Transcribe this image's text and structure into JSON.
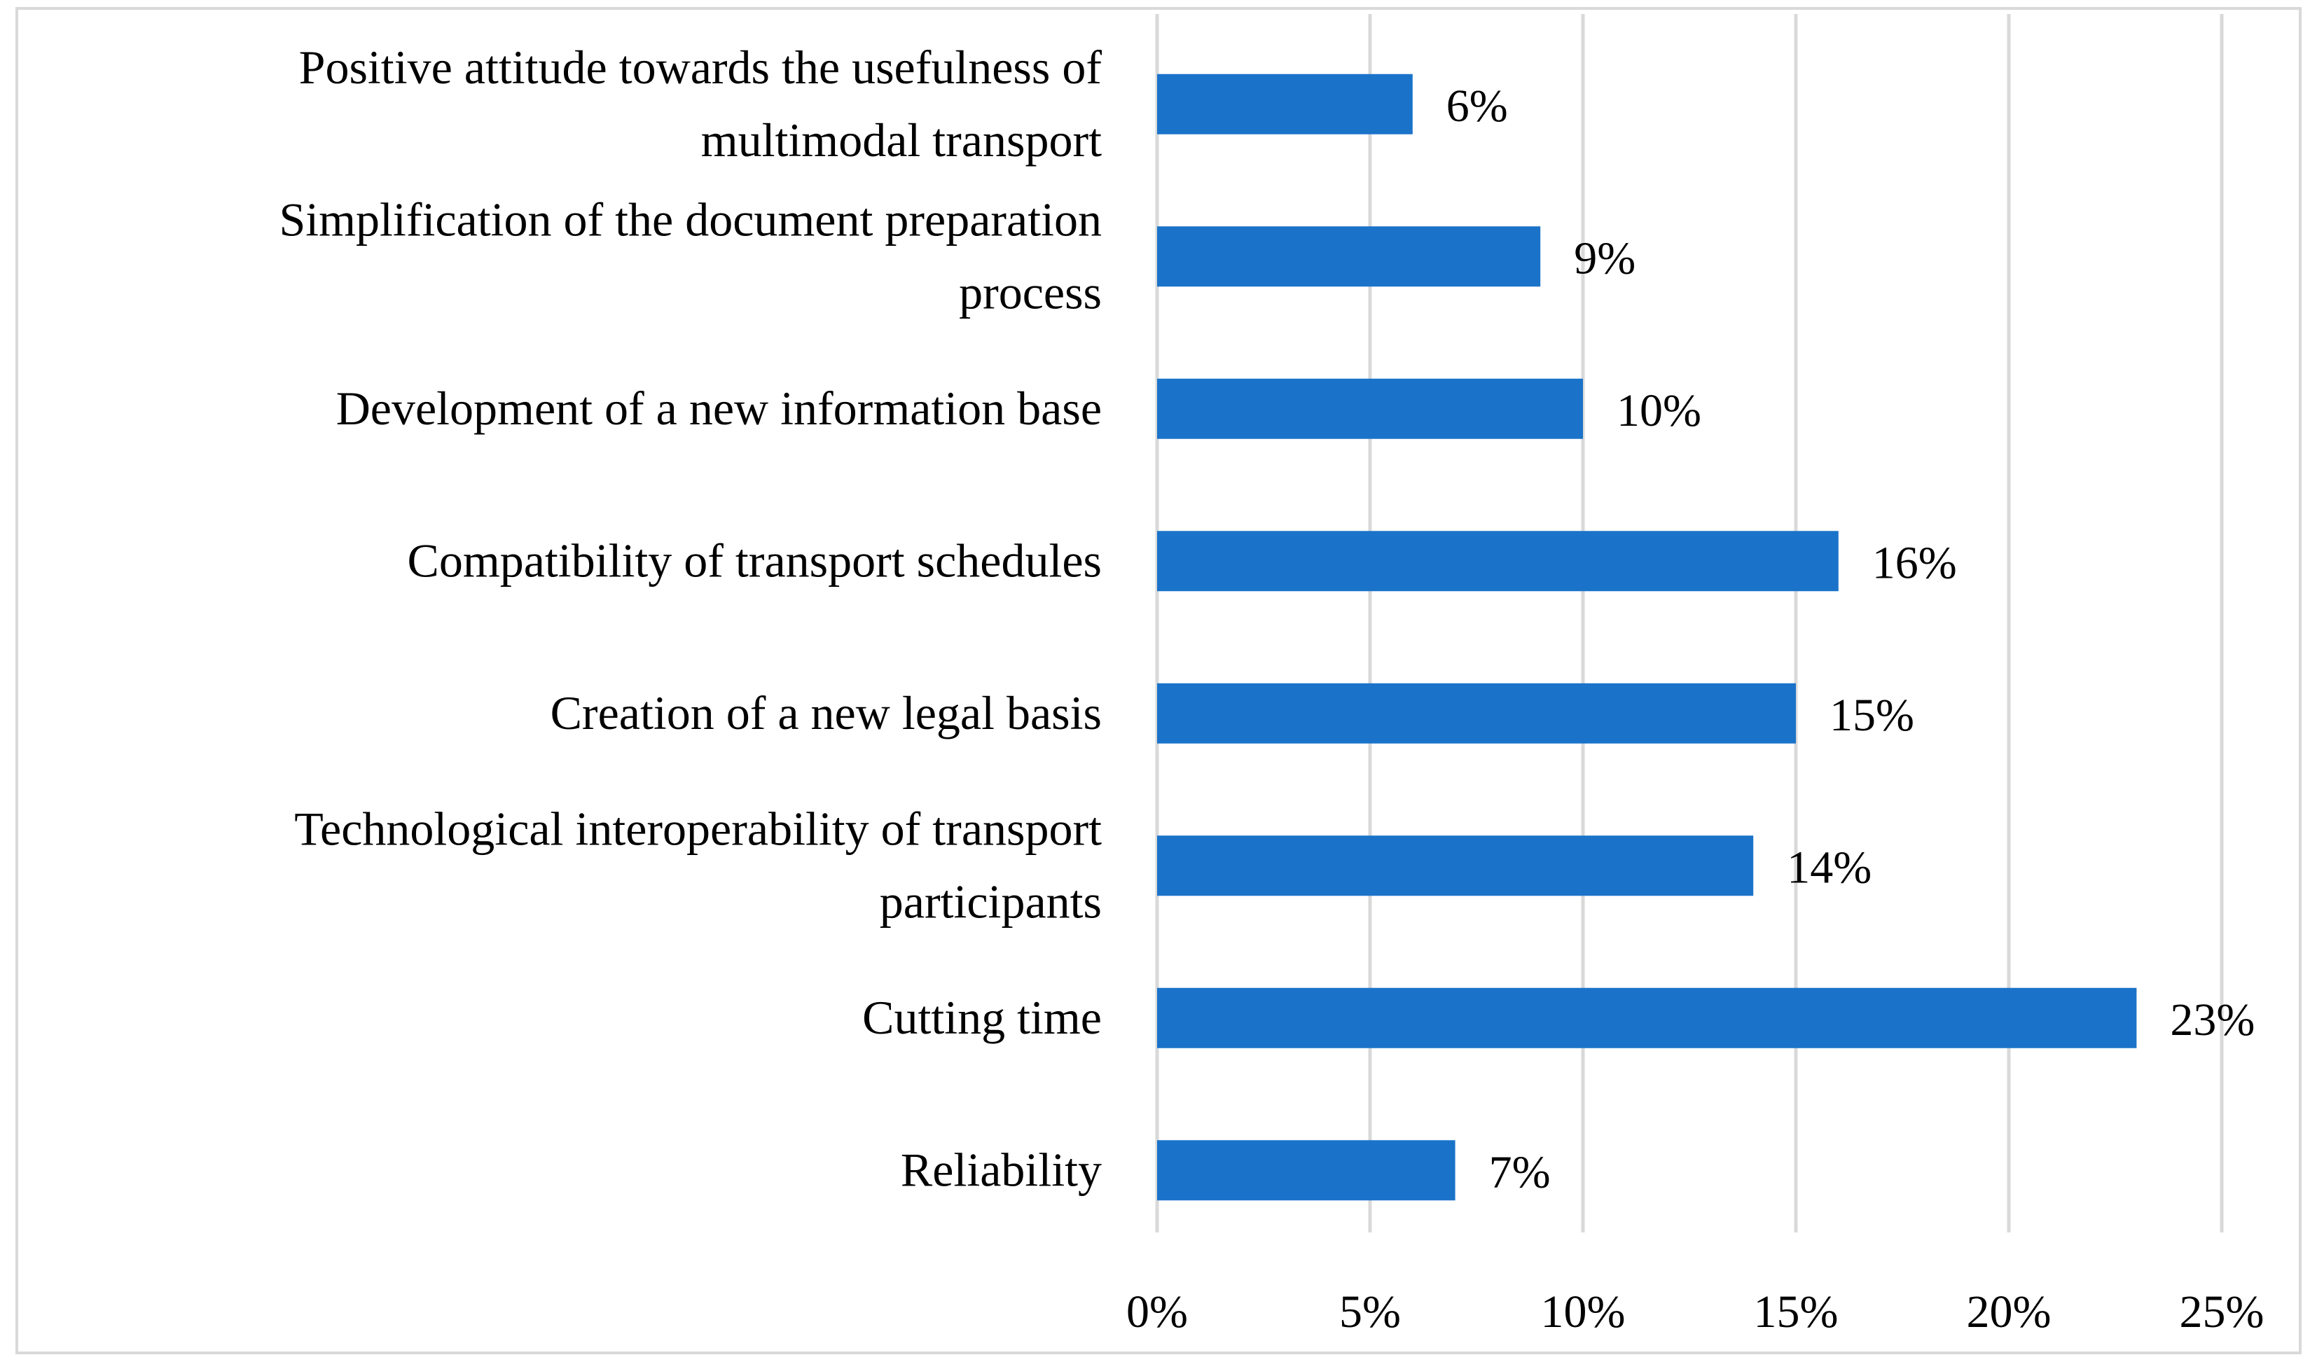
{
  "chart_data": {
    "type": "bar",
    "orientation": "horizontal",
    "title": "",
    "xlabel": "",
    "ylabel": "",
    "categories": [
      [
        "Positive attitude towards the usefulness of",
        "multimodal transport"
      ],
      [
        "Simplification of the document preparation",
        "process"
      ],
      [
        "Development of a new information base"
      ],
      [
        "Compatibility of transport schedules"
      ],
      [
        "Creation of a new legal basis"
      ],
      [
        "Technological interoperability of transport",
        "participants"
      ],
      [
        "Cutting time"
      ],
      [
        "Reliability"
      ]
    ],
    "values": [
      6,
      9,
      10,
      16,
      15,
      14,
      23,
      7
    ],
    "value_labels": [
      "6%",
      "9%",
      "10%",
      "16%",
      "15%",
      "14%",
      "23%",
      "7%"
    ],
    "xlim": [
      0,
      25
    ],
    "ticks": [
      0,
      5,
      10,
      15,
      20,
      25
    ],
    "tick_labels": [
      "0%",
      "5%",
      "10%",
      "15%",
      "20%",
      "25%"
    ],
    "grid": true,
    "legend": "none",
    "colors": {
      "bar": "#1a73c9",
      "grid": "#d9d9d9",
      "frame": "#d9d9d9"
    }
  }
}
